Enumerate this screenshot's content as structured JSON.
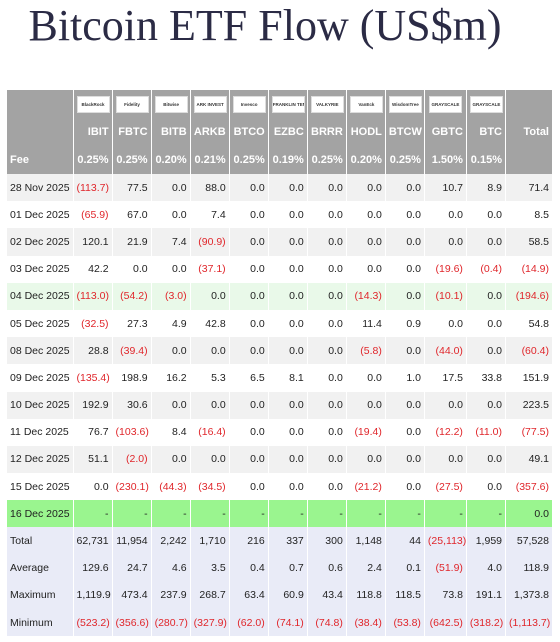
{
  "header": {
    "title": "Bitcoin ETF Flow (US$m)"
  },
  "table": {
    "logos": [
      "BlackRock",
      "Fidelity",
      "Bitwise",
      "ARK INVEST",
      "Invesco",
      "FRANKLIN TEMPLETON",
      "VALKYRIE",
      "VanEck",
      "WisdomTree",
      "GRAYSCALE",
      "GRAYSCALE"
    ],
    "total_header": "Total",
    "tickers": [
      "IBIT",
      "FBTC",
      "BITB",
      "ARKB",
      "BTCO",
      "EZBC",
      "BRRR",
      "HODL",
      "BTCW",
      "GBTC",
      "BTC"
    ],
    "fee_label": "Fee",
    "fees": [
      "0.25%",
      "0.25%",
      "0.20%",
      "0.21%",
      "0.25%",
      "0.19%",
      "0.25%",
      "0.20%",
      "0.25%",
      "1.50%",
      "0.15%"
    ],
    "rows": [
      {
        "date": "28 Nov 2025",
        "cells": [
          "(113.7)",
          "77.5",
          "0.0",
          "88.0",
          "0.0",
          "0.0",
          "0.0",
          "0.0",
          "0.0",
          "10.7",
          "8.9",
          "71.4"
        ]
      },
      {
        "date": "01 Dec 2025",
        "cells": [
          "(65.9)",
          "67.0",
          "0.0",
          "7.4",
          "0.0",
          "0.0",
          "0.0",
          "0.0",
          "0.0",
          "0.0",
          "0.0",
          "8.5"
        ]
      },
      {
        "date": "02 Dec 2025",
        "cells": [
          "120.1",
          "21.9",
          "7.4",
          "(90.9)",
          "0.0",
          "0.0",
          "0.0",
          "0.0",
          "0.0",
          "0.0",
          "0.0",
          "58.5"
        ]
      },
      {
        "date": "03 Dec 2025",
        "cells": [
          "42.2",
          "0.0",
          "0.0",
          "(37.1)",
          "0.0",
          "0.0",
          "0.0",
          "0.0",
          "0.0",
          "(19.6)",
          "(0.4)",
          "(14.9)"
        ]
      },
      {
        "date": "04 Dec 2025",
        "highlight": "#e9f9e9",
        "cells": [
          "(113.0)",
          "(54.2)",
          "(3.0)",
          "0.0",
          "0.0",
          "0.0",
          "0.0",
          "(14.3)",
          "0.0",
          "(10.1)",
          "0.0",
          "(194.6)"
        ]
      },
      {
        "date": "05 Dec 2025",
        "cells": [
          "(32.5)",
          "27.3",
          "4.9",
          "42.8",
          "0.0",
          "0.0",
          "0.0",
          "11.4",
          "0.9",
          "0.0",
          "0.0",
          "54.8"
        ]
      },
      {
        "date": "08 Dec 2025",
        "cells": [
          "28.8",
          "(39.4)",
          "0.0",
          "0.0",
          "0.0",
          "0.0",
          "0.0",
          "(5.8)",
          "0.0",
          "(44.0)",
          "0.0",
          "(60.4)"
        ]
      },
      {
        "date": "09 Dec 2025",
        "cells": [
          "(135.4)",
          "198.9",
          "16.2",
          "5.3",
          "6.5",
          "8.1",
          "0.0",
          "0.0",
          "1.0",
          "17.5",
          "33.8",
          "151.9"
        ]
      },
      {
        "date": "10 Dec 2025",
        "cells": [
          "192.9",
          "30.6",
          "0.0",
          "0.0",
          "0.0",
          "0.0",
          "0.0",
          "0.0",
          "0.0",
          "0.0",
          "0.0",
          "223.5"
        ]
      },
      {
        "date": "11 Dec 2025",
        "cells": [
          "76.7",
          "(103.6)",
          "8.4",
          "(16.4)",
          "0.0",
          "0.0",
          "0.0",
          "(19.4)",
          "0.0",
          "(12.2)",
          "(11.0)",
          "(77.5)"
        ]
      },
      {
        "date": "12 Dec 2025",
        "cells": [
          "51.1",
          "(2.0)",
          "0.0",
          "0.0",
          "0.0",
          "0.0",
          "0.0",
          "0.0",
          "0.0",
          "0.0",
          "0.0",
          "49.1"
        ]
      },
      {
        "date": "15 Dec 2025",
        "cells": [
          "0.0",
          "(230.1)",
          "(44.3)",
          "(34.5)",
          "0.0",
          "0.0",
          "0.0",
          "(21.2)",
          "0.0",
          "(27.5)",
          "0.0",
          "(357.6)"
        ]
      },
      {
        "date": "16 Dec 2025",
        "highlight": "#9af58f",
        "cells": [
          "-",
          "-",
          "-",
          "-",
          "-",
          "-",
          "-",
          "-",
          "-",
          "-",
          "-",
          "0.0"
        ]
      }
    ],
    "summary": [
      {
        "label": "Total",
        "cells": [
          "62,731",
          "11,954",
          "2,242",
          "1,710",
          "216",
          "337",
          "300",
          "1,148",
          "44",
          "(25,113)",
          "1,959",
          "57,528"
        ]
      },
      {
        "label": "Average",
        "cells": [
          "129.6",
          "24.7",
          "4.6",
          "3.5",
          "0.4",
          "0.7",
          "0.6",
          "2.4",
          "0.1",
          "(51.9)",
          "4.0",
          "118.9"
        ]
      },
      {
        "label": "Maximum",
        "cells": [
          "1,119.9",
          "473.4",
          "237.9",
          "268.7",
          "63.4",
          "60.9",
          "43.4",
          "118.8",
          "118.5",
          "73.8",
          "191.1",
          "1,373.8"
        ]
      },
      {
        "label": "Minimum",
        "cells": [
          "(523.2)",
          "(356.6)",
          "(280.7)",
          "(327.9)",
          "(62.0)",
          "(74.1)",
          "(74.8)",
          "(38.4)",
          "(53.8)",
          "(642.5)",
          "(318.2)",
          "(1,113.7)"
        ]
      }
    ]
  }
}
